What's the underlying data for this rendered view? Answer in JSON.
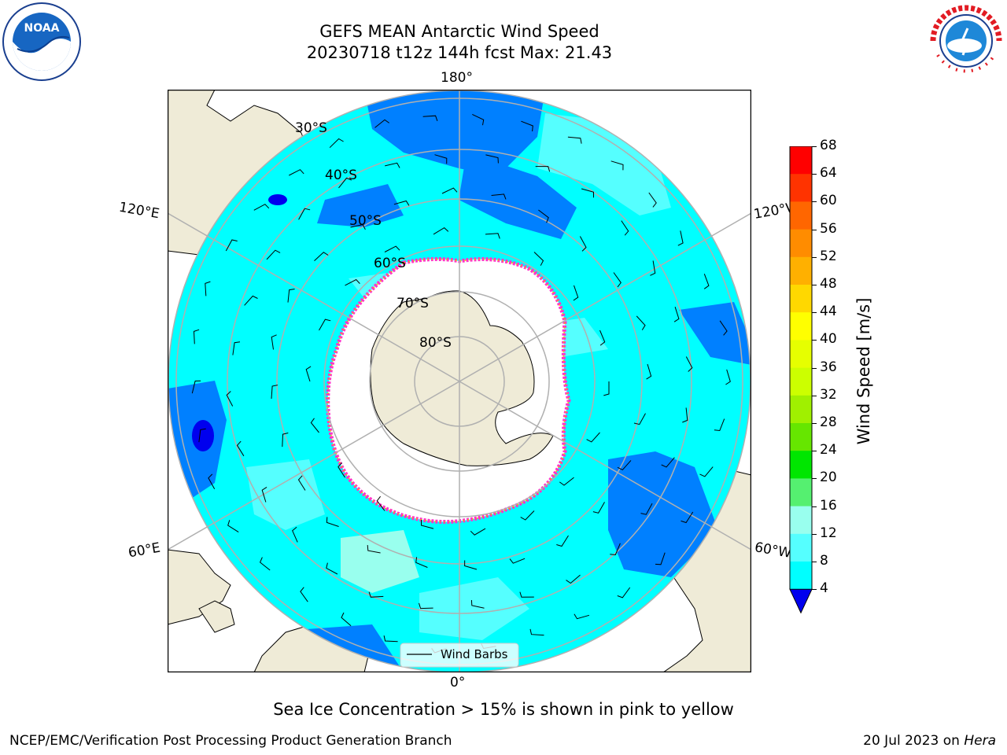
{
  "title": {
    "line1": "GEFS MEAN Antarctic Wind Speed",
    "line2": "20230718 t12z 144h fcst   Max: 21.43"
  },
  "logos": {
    "left": {
      "name": "noara-logo",
      "text": "NOAA"
    },
    "right": {
      "name": "nws-logo",
      "text": "NATIONAL WEATHER SERVICE"
    }
  },
  "map": {
    "longitude_labels": [
      "180°",
      "120°E",
      "120°W",
      "60°E",
      "60°W",
      "0°"
    ],
    "latitude_labels": [
      "30°S",
      "40°S",
      "50°S",
      "60°S",
      "70°S",
      "80°S"
    ],
    "legend_label": "Wind Barbs",
    "colors": {
      "land": "#efebd7",
      "sea_ice": "#ffffff",
      "ice_edge": "#ff33cc",
      "grid": "#b0b0b0"
    }
  },
  "colorbar": {
    "label": "Wind Speed [m/s]",
    "ticks": [
      "68",
      "64",
      "60",
      "56",
      "52",
      "48",
      "44",
      "40",
      "36",
      "32",
      "28",
      "24",
      "20",
      "16",
      "12",
      "8",
      "4"
    ],
    "colors": [
      "#ff0000",
      "#ff3300",
      "#ff6600",
      "#ff8c00",
      "#ffb000",
      "#ffd800",
      "#ffff00",
      "#e6ff00",
      "#ccff00",
      "#a0f000",
      "#66e600",
      "#00e600",
      "#55f070",
      "#99ffee",
      "#55ffff",
      "#00ffff",
      "#0080ff"
    ],
    "under_color": "#0000ee"
  },
  "chart_data": {
    "type": "heatmap",
    "title": "GEFS MEAN Antarctic Wind Speed",
    "subtitle": "20230718 t12z 144h fcst   Max: 21.43",
    "variable": "Wind Speed [m/s]",
    "max": 21.43,
    "colorbar_range": [
      4,
      68
    ],
    "colorbar_step": 4
  },
  "annotation": "Sea Ice Concentration > 15% is shown in pink to yellow",
  "footer": {
    "left": "NCEP/EMC/Verification Post Processing Product Generation Branch",
    "right_prefix": "20 Jul 2023 on ",
    "right_host": "Hera"
  }
}
